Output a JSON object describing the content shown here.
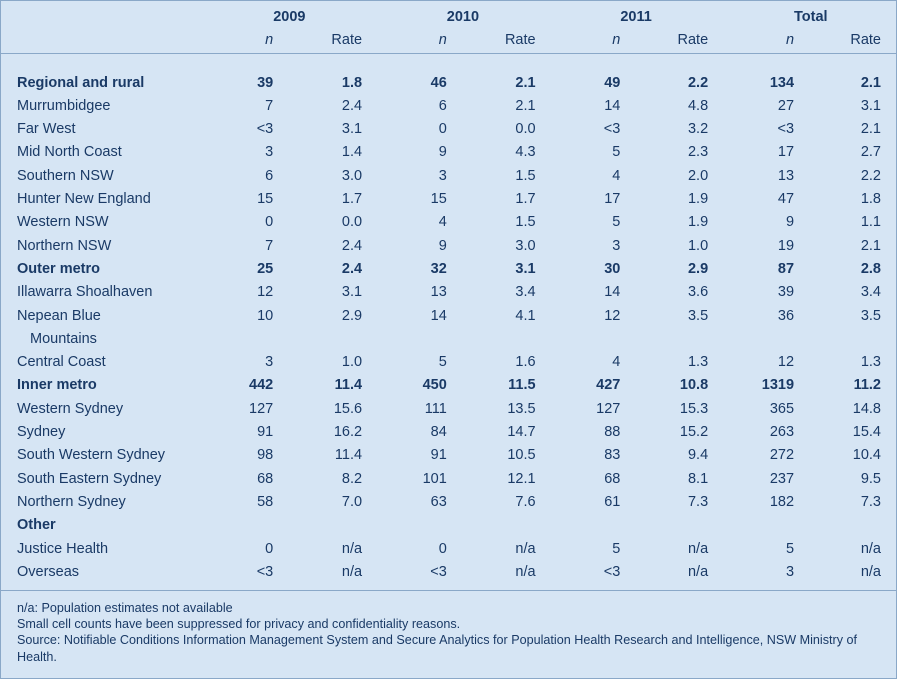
{
  "header": {
    "years": [
      "2009",
      "2010",
      "2011",
      "Total"
    ],
    "n_label": "n",
    "rate_label": "Rate"
  },
  "rows": [
    {
      "name": "Regional and rural",
      "bold": true,
      "vals": [
        "39",
        "1.8",
        "46",
        "2.1",
        "49",
        "2.2",
        "134",
        "2.1"
      ]
    },
    {
      "name": "Murrumbidgee",
      "bold": false,
      "vals": [
        "7",
        "2.4",
        "6",
        "2.1",
        "14",
        "4.8",
        "27",
        "3.1"
      ]
    },
    {
      "name": "Far West",
      "bold": false,
      "vals": [
        "<3",
        "3.1",
        "0",
        "0.0",
        "<3",
        "3.2",
        "<3",
        "2.1"
      ]
    },
    {
      "name": "Mid North Coast",
      "bold": false,
      "vals": [
        "3",
        "1.4",
        "9",
        "4.3",
        "5",
        "2.3",
        "17",
        "2.7"
      ]
    },
    {
      "name": "Southern NSW",
      "bold": false,
      "vals": [
        "6",
        "3.0",
        "3",
        "1.5",
        "4",
        "2.0",
        "13",
        "2.2"
      ]
    },
    {
      "name": "Hunter New England",
      "bold": false,
      "vals": [
        "15",
        "1.7",
        "15",
        "1.7",
        "17",
        "1.9",
        "47",
        "1.8"
      ]
    },
    {
      "name": "Western NSW",
      "bold": false,
      "vals": [
        "0",
        "0.0",
        "4",
        "1.5",
        "5",
        "1.9",
        "9",
        "1.1"
      ]
    },
    {
      "name": "Northern NSW",
      "bold": false,
      "vals": [
        "7",
        "2.4",
        "9",
        "3.0",
        "3",
        "1.0",
        "19",
        "2.1"
      ]
    },
    {
      "name": "Outer metro",
      "bold": true,
      "vals": [
        "25",
        "2.4",
        "32",
        "3.1",
        "30",
        "2.9",
        "87",
        "2.8"
      ]
    },
    {
      "name": "Illawarra Shoalhaven",
      "bold": false,
      "vals": [
        "12",
        "3.1",
        "13",
        "3.4",
        "14",
        "3.6",
        "39",
        "3.4"
      ]
    },
    {
      "name": "Nepean Blue",
      "name2": "Mountains",
      "bold": false,
      "vals": [
        "10",
        "2.9",
        "14",
        "4.1",
        "12",
        "3.5",
        "36",
        "3.5"
      ]
    },
    {
      "name": "Central Coast",
      "bold": false,
      "vals": [
        "3",
        "1.0",
        "5",
        "1.6",
        "4",
        "1.3",
        "12",
        "1.3"
      ]
    },
    {
      "name": "Inner metro",
      "bold": true,
      "vals": [
        "442",
        "11.4",
        "450",
        "11.5",
        "427",
        "10.8",
        "1319",
        "11.2"
      ]
    },
    {
      "name": "Western Sydney",
      "bold": false,
      "vals": [
        "127",
        "15.6",
        "111",
        "13.5",
        "127",
        "15.3",
        "365",
        "14.8"
      ]
    },
    {
      "name": "Sydney",
      "bold": false,
      "vals": [
        "91",
        "16.2",
        "84",
        "14.7",
        "88",
        "15.2",
        "263",
        "15.4"
      ]
    },
    {
      "name": "South Western Sydney",
      "bold": false,
      "vals": [
        "98",
        "11.4",
        "91",
        "10.5",
        "83",
        "9.4",
        "272",
        "10.4"
      ]
    },
    {
      "name": "South Eastern Sydney",
      "bold": false,
      "vals": [
        "68",
        "8.2",
        "101",
        "12.1",
        "68",
        "8.1",
        "237",
        "9.5"
      ]
    },
    {
      "name": "Northern Sydney",
      "bold": false,
      "vals": [
        "58",
        "7.0",
        "63",
        "7.6",
        "61",
        "7.3",
        "182",
        "7.3"
      ]
    },
    {
      "name": "Other",
      "bold": true,
      "vals": [
        "",
        "",
        "",
        "",
        "",
        "",
        "",
        ""
      ]
    },
    {
      "name": "Justice Health",
      "bold": false,
      "vals": [
        "0",
        "n/a",
        "0",
        "n/a",
        "5",
        "n/a",
        "5",
        "n/a"
      ]
    },
    {
      "name": "Overseas",
      "bold": false,
      "vals": [
        "<3",
        "n/a",
        "<3",
        "n/a",
        "<3",
        "n/a",
        "3",
        "n/a"
      ]
    }
  ],
  "notes": {
    "line1": "n/a: Population estimates not available",
    "line2": "Small cell counts have been suppressed for privacy and confidentiality reasons.",
    "line3": "Source: Notifiable Conditions Information Management System and Secure Analytics for Population Health Research and Intelligence, NSW Ministry of Health."
  }
}
